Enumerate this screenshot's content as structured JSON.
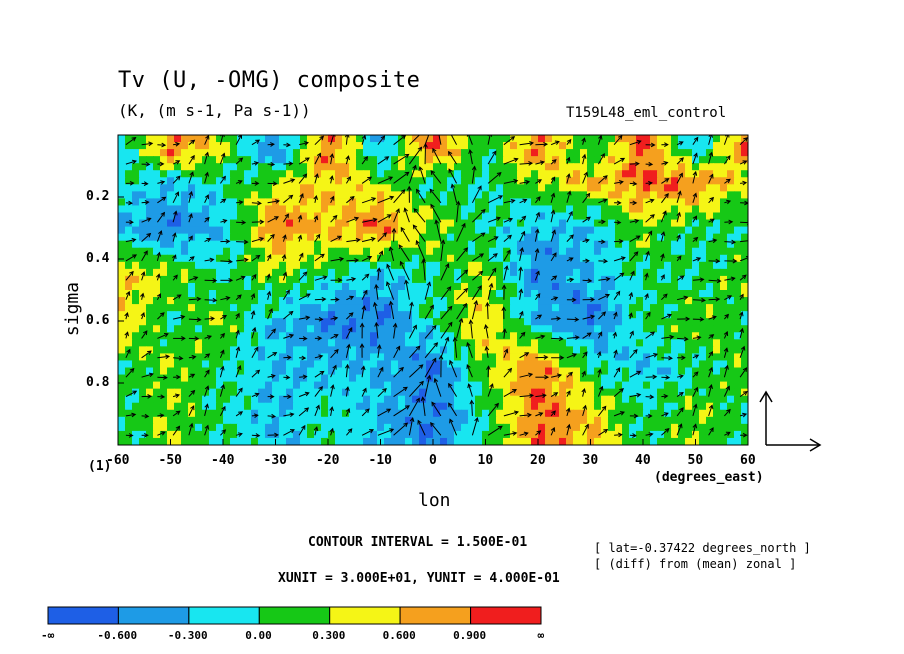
{
  "chart_data": {
    "type": "heatmap",
    "title": "Tv (U, -OMG) composite",
    "subtitle": "(K, (m s-1, Pa s-1))",
    "run_id": "T159L48_eml_control",
    "xlabel": "lon",
    "ylabel": "sigma",
    "x_units_label": "(degrees_east)",
    "corner_label": "(1)",
    "xlim": [
      -60,
      60
    ],
    "ylim": [
      1.0,
      0.0
    ],
    "x_ticks": [
      "-60",
      "-50",
      "-40",
      "-30",
      "-20",
      "-10",
      "0",
      "10",
      "20",
      "30",
      "40",
      "50",
      "60"
    ],
    "x_tick_values": [
      -60,
      -50,
      -40,
      -30,
      -20,
      -10,
      0,
      10,
      20,
      30,
      40,
      50,
      60
    ],
    "y_ticks": [
      "0.2",
      "0.4",
      "0.6",
      "0.8"
    ],
    "y_tick_values": [
      0.2,
      0.4,
      0.6,
      0.8
    ],
    "contour_interval": "CONTOUR INTERVAL = 1.500E-01",
    "vector_units": "XUNIT = 3.000E+01, YUNIT = 4.000E-01",
    "notes": [
      "[ lat=-0.37422 degrees_north ]",
      "[ (diff) from (mean) zonal ]"
    ],
    "colorbar": {
      "labels": [
        "-∞",
        "-0.600",
        "-0.300",
        "0.00",
        "0.300",
        "0.600",
        "0.900",
        "∞"
      ],
      "colors": [
        "#1e5fe6",
        "#1e9be6",
        "#18e6f0",
        "#16c816",
        "#f5f516",
        "#f5a01e",
        "#f01e1e"
      ]
    },
    "field_levels_lon": [
      -60,
      -50,
      -40,
      -30,
      -20,
      -10,
      0,
      10,
      20,
      30,
      40,
      50,
      60
    ],
    "field_levels_sigma": [
      0.05,
      0.15,
      0.3,
      0.45,
      0.6,
      0.75,
      0.9
    ],
    "values": [
      [
        -0.3,
        0.9,
        0.3,
        -0.6,
        0.9,
        -0.3,
        0.9,
        0.0,
        0.9,
        0.0,
        0.9,
        -0.3,
        0.9
      ],
      [
        0.0,
        -0.3,
        0.0,
        0.3,
        0.6,
        0.3,
        0.0,
        0.0,
        0.3,
        0.6,
        0.9,
        0.9,
        0.3
      ],
      [
        -0.3,
        -0.6,
        -0.3,
        0.9,
        0.6,
        0.9,
        0.3,
        0.0,
        -0.3,
        -0.3,
        0.3,
        0.0,
        0.0
      ],
      [
        0.6,
        0.3,
        0.0,
        0.3,
        0.0,
        -0.3,
        0.0,
        0.3,
        -0.6,
        -0.3,
        0.0,
        0.0,
        0.3
      ],
      [
        0.6,
        0.0,
        0.3,
        -0.3,
        -0.6,
        -0.6,
        0.0,
        0.6,
        -0.3,
        -0.6,
        0.0,
        0.3,
        0.0
      ],
      [
        0.0,
        0.3,
        0.0,
        -0.3,
        -0.3,
        -0.3,
        -0.6,
        0.3,
        0.9,
        0.0,
        -0.3,
        0.0,
        0.3
      ],
      [
        0.0,
        0.3,
        0.0,
        -0.3,
        0.0,
        -0.3,
        -0.6,
        0.0,
        0.9,
        0.6,
        0.0,
        0.3,
        0.0
      ]
    ]
  }
}
